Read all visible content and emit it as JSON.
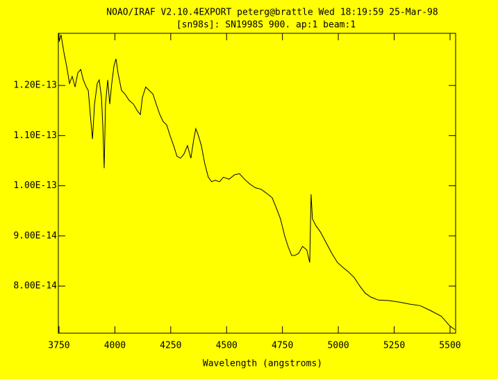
{
  "chart_data": {
    "type": "line",
    "title": "NOAO/IRAF V2.10.4EXPORT peterg@brattle Wed 18:19:59 25-Mar-98",
    "subtitle": "[sn98s]: SN1998S 900. ap:1 beam:1",
    "x_label": "Wavelength (angstroms)",
    "color": "#000000",
    "x": [
      3750,
      3759,
      3772,
      3784,
      3797,
      3809,
      3822,
      3834,
      3847,
      3859,
      3872,
      3881,
      3890,
      3900,
      3909,
      3921,
      3930,
      3940,
      3946,
      3952,
      3958,
      3968,
      3977,
      3986,
      3996,
      4005,
      4014,
      4030,
      4045,
      4064,
      4083,
      4101,
      4114,
      4123,
      4138,
      4154,
      4170,
      4185,
      4201,
      4216,
      4232,
      4247,
      4263,
      4278,
      4294,
      4309,
      4325,
      4340,
      4353,
      4362,
      4374,
      4387,
      4402,
      4418,
      4433,
      4449,
      4468,
      4486,
      4511,
      4536,
      4558,
      4580,
      4605,
      4629,
      4654,
      4679,
      4704,
      4723,
      4741,
      4760,
      4775,
      4791,
      4806,
      4822,
      4840,
      4859,
      4872,
      4878,
      4884,
      4899,
      4921,
      4946,
      4971,
      4996,
      5021,
      5046,
      5071,
      5096,
      5120,
      5145,
      5180,
      5226,
      5273,
      5320,
      5366,
      5413,
      5460,
      5500,
      5522
    ],
    "values": [
      1.287e-13,
      1.301e-13,
      1.266e-13,
      1.239e-13,
      1.204e-13,
      1.218e-13,
      1.197e-13,
      1.225e-13,
      1.232e-13,
      1.211e-13,
      1.197e-13,
      1.19e-13,
      1.142e-13,
      1.093e-13,
      1.163e-13,
      1.204e-13,
      1.211e-13,
      1.176e-13,
      1.121e-13,
      1.035e-13,
      1.163e-13,
      1.211e-13,
      1.163e-13,
      1.204e-13,
      1.239e-13,
      1.253e-13,
      1.225e-13,
      1.19e-13,
      1.183e-13,
      1.17e-13,
      1.163e-13,
      1.149e-13,
      1.142e-13,
      1.176e-13,
      1.197e-13,
      1.19e-13,
      1.183e-13,
      1.163e-13,
      1.142e-13,
      1.128e-13,
      1.121e-13,
      1.1e-13,
      1.08e-13,
      1.059e-13,
      1.055e-13,
      1.063e-13,
      1.08e-13,
      1.055e-13,
      1.093e-13,
      1.114e-13,
      1.1e-13,
      1.08e-13,
      1.045e-13,
      1.017e-13,
      1.008e-13,
      1.011e-13,
      1.008e-13,
      1.017e-13,
      1.013e-13,
      1.022e-13,
      1.024e-13,
      1.013e-13,
      1.003e-13,
      9.96e-14,
      9.93e-14,
      9.85e-14,
      9.76e-14,
      9.55e-14,
      9.34e-14,
      9e-14,
      8.79e-14,
      8.61e-14,
      8.61e-14,
      8.65e-14,
      8.79e-14,
      8.72e-14,
      8.47e-14,
      9.83e-14,
      9.34e-14,
      9.21e-14,
      9.07e-14,
      8.86e-14,
      8.65e-14,
      8.47e-14,
      8.37e-14,
      8.28e-14,
      8.17e-14,
      8e-14,
      7.86e-14,
      7.78e-14,
      7.72e-14,
      7.71e-14,
      7.68e-14,
      7.64e-14,
      7.61e-14,
      7.51e-14,
      7.4e-14,
      7.2e-14,
      7.13e-14
    ],
    "xlim": [
      3747,
      5525
    ],
    "xticks": [
      3750,
      4000,
      4250,
      4500,
      4750,
      5000,
      5250,
      5500
    ],
    "ylim": [
      7.06e-14,
      1.304e-13
    ],
    "yticks": [
      {
        "value": 8e-14,
        "label": "8.00E-14"
      },
      {
        "value": 9e-14,
        "label": "9.00E-14"
      },
      {
        "value": 1e-13,
        "label": "1.00E-13"
      },
      {
        "value": 1.1e-13,
        "label": "1.10E-13"
      },
      {
        "value": 1.2e-13,
        "label": "1.20E-13"
      }
    ],
    "grid": false
  }
}
